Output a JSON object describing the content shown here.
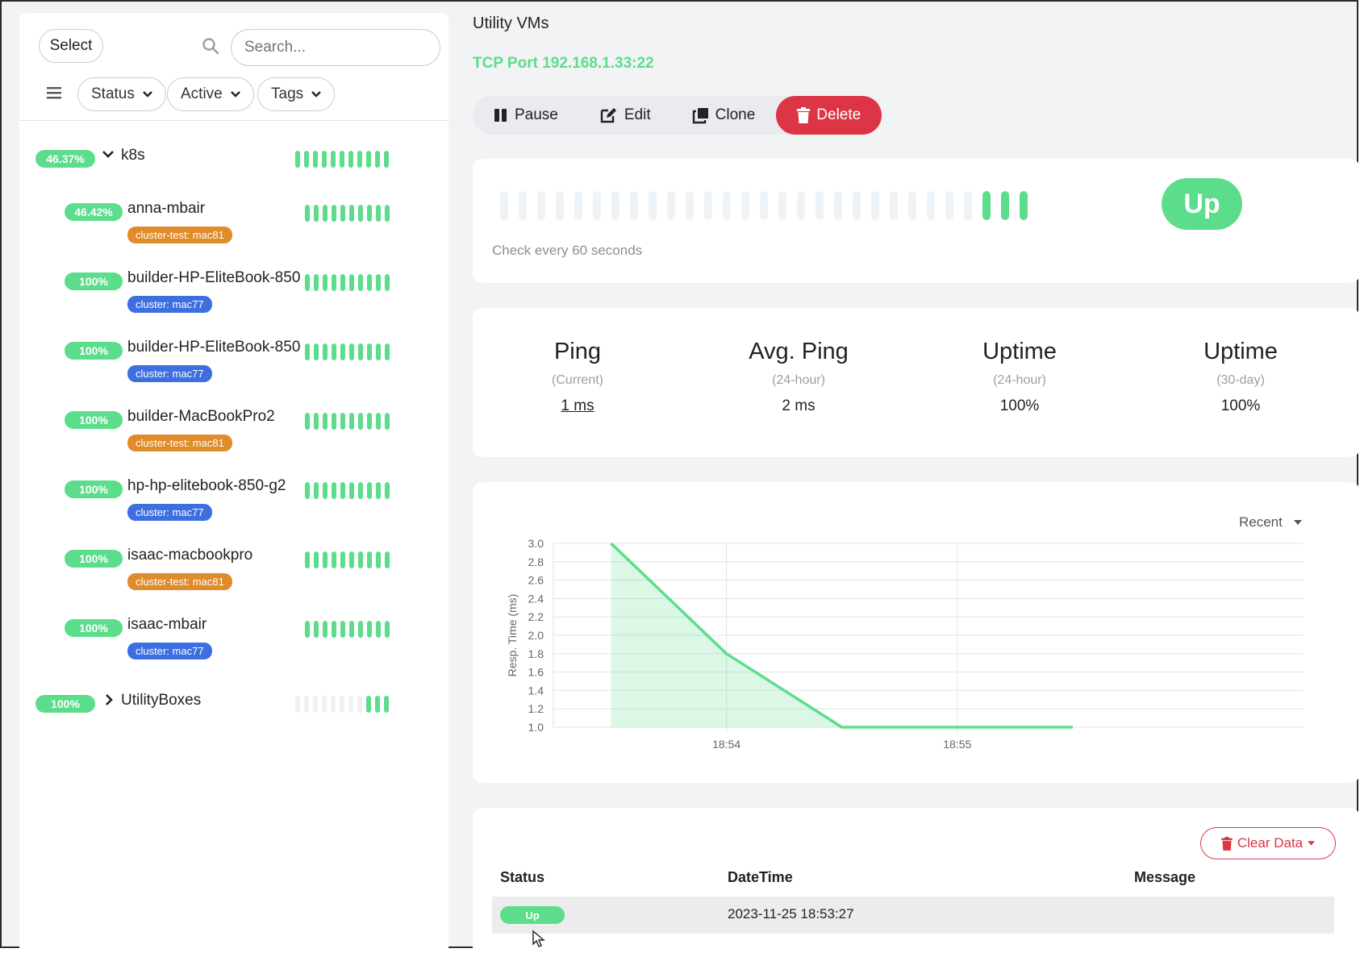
{
  "sidebar": {
    "select_label": "Select",
    "search_placeholder": "Search...",
    "filters": [
      {
        "label": "Status"
      },
      {
        "label": "Active"
      },
      {
        "label": "Tags"
      }
    ],
    "groups": [
      {
        "pct": "46.37%",
        "name": "k8s",
        "expanded": true
      },
      {
        "pct": "100%",
        "name": "UtilityBoxes",
        "expanded": false
      }
    ],
    "children": [
      {
        "pct": "46.42%",
        "name": "anna-mbair",
        "tag": "cluster-test: mac81",
        "tag_color": "#e08b2c"
      },
      {
        "pct": "100%",
        "name": "builder-HP-EliteBook-850",
        "tag": "cluster: mac77",
        "tag_color": "#3d6fe0"
      },
      {
        "pct": "100%",
        "name": "builder-HP-EliteBook-850",
        "tag": "cluster: mac77",
        "tag_color": "#3d6fe0"
      },
      {
        "pct": "100%",
        "name": "builder-MacBookPro2",
        "tag": "cluster-test: mac81",
        "tag_color": "#e08b2c"
      },
      {
        "pct": "100%",
        "name": "hp-hp-elitebook-850-g2",
        "tag": "cluster: mac77",
        "tag_color": "#3d6fe0"
      },
      {
        "pct": "100%",
        "name": "isaac-macbookpro",
        "tag": "cluster-test: mac81",
        "tag_color": "#e08b2c"
      },
      {
        "pct": "100%",
        "name": "isaac-mbair",
        "tag": "cluster: mac77",
        "tag_color": "#3d6fe0"
      }
    ]
  },
  "main": {
    "group_name": "Utility VMs",
    "monitor_url": "TCP Port 192.168.1.33:22",
    "actions": {
      "pause": "Pause",
      "edit": "Edit",
      "clone": "Clone",
      "delete": "Delete"
    },
    "heartbeat": {
      "status": "Up",
      "check_text": "Check every 60 seconds",
      "total_beats": 29,
      "filled_beats": 3
    },
    "stats": [
      {
        "title": "Ping",
        "sub": "(Current)",
        "value": "1 ms"
      },
      {
        "title": "Avg. Ping",
        "sub": "(24-hour)",
        "value": "2 ms"
      },
      {
        "title": "Uptime",
        "sub": "(24-hour)",
        "value": "100%"
      },
      {
        "title": "Uptime",
        "sub": "(30-day)",
        "value": "100%"
      }
    ],
    "chart": {
      "range_label": "Recent"
    },
    "events": {
      "clear_label": "Clear Data",
      "headers": {
        "status": "Status",
        "datetime": "DateTime",
        "message": "Message"
      },
      "rows": [
        {
          "status": "Up",
          "datetime": "2023-11-25 18:53:27",
          "message": ""
        }
      ]
    }
  },
  "chart_data": {
    "type": "area",
    "ylabel": "Resp. Time (ms)",
    "xlabel": "",
    "ylim": [
      1.0,
      3.0
    ],
    "y_ticks": [
      "1.0",
      "1.2",
      "1.4",
      "1.6",
      "1.8",
      "2.0",
      "2.2",
      "2.4",
      "2.6",
      "2.8",
      "3.0"
    ],
    "x_ticks": [
      "18:54",
      "18:55"
    ],
    "series": [
      {
        "x": [
          "18:53:30",
          "18:54:00",
          "18:54:30",
          "18:55:00",
          "18:55:30"
        ],
        "values": [
          3.0,
          1.8,
          1.0,
          1.0,
          1.0
        ]
      }
    ],
    "color": "#5cdd8b",
    "grid": true
  }
}
